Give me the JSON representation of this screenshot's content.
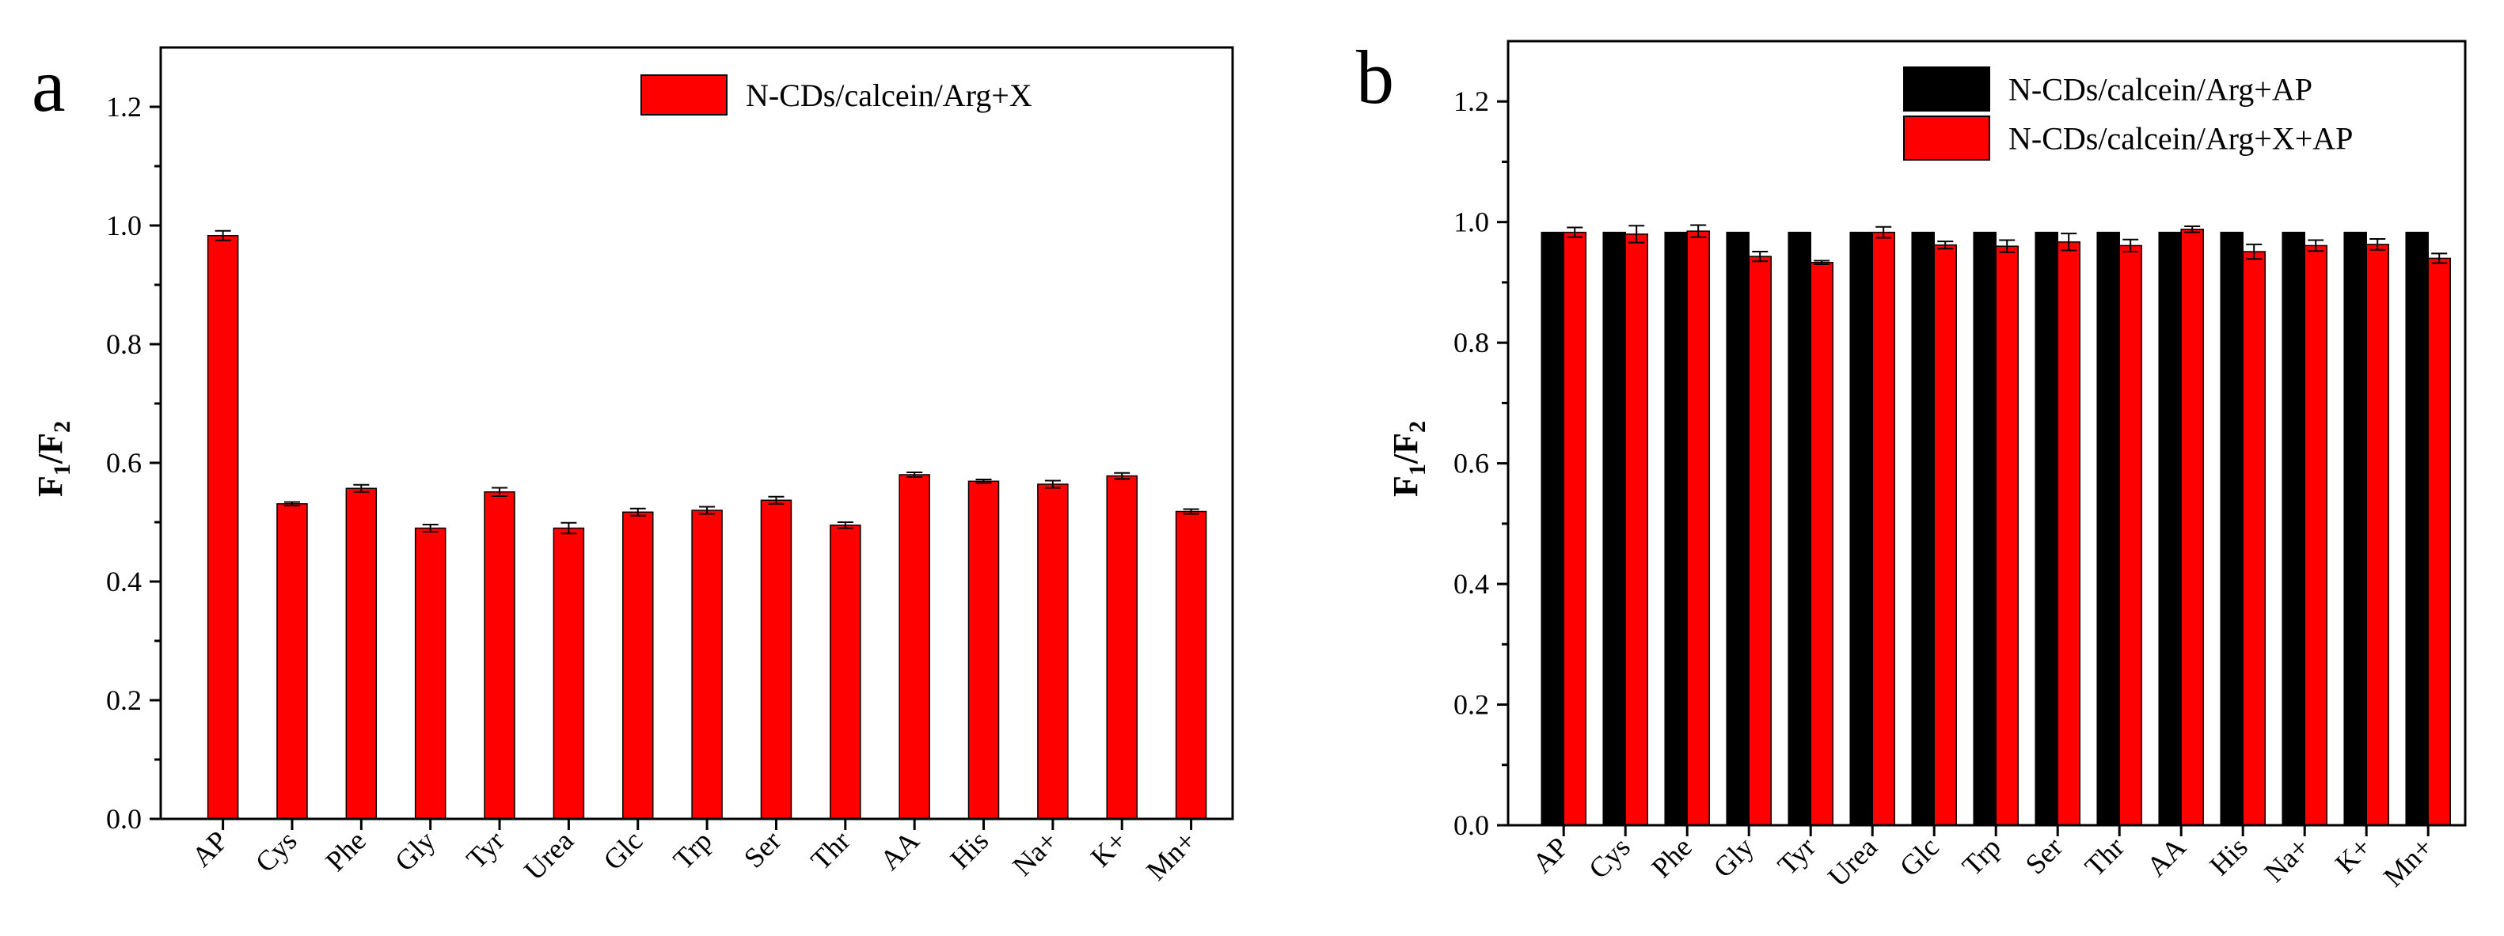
{
  "chart_data": [
    {
      "type": "bar",
      "panel_label": "a",
      "ylabel": {
        "main": "F",
        "sub1": "1",
        "sep": "/F",
        "sub2": "2"
      },
      "xlabel": "",
      "ylim": [
        0,
        1.3
      ],
      "yticks": [
        "0.0",
        "0.2",
        "0.4",
        "0.6",
        "0.8",
        "1.0",
        "1.2"
      ],
      "yticks_values": [
        0,
        0.2,
        0.4,
        0.6,
        0.8,
        1.0,
        1.2
      ],
      "categories": [
        "AP",
        "Cys",
        "Phe",
        "Gly",
        "Tyr",
        "Urea",
        "Glc",
        "Trp",
        "Ser",
        "Thr",
        "AA",
        "His",
        "Na+",
        "K+",
        "Mn+"
      ],
      "series": [
        {
          "name": "N-CDs/calcein/Arg+X",
          "color": "#ff0000",
          "values": [
            0.983,
            0.531,
            0.557,
            0.49,
            0.551,
            0.49,
            0.517,
            0.52,
            0.537,
            0.495,
            0.58,
            0.569,
            0.564,
            0.578,
            0.518
          ],
          "errors": [
            0.008,
            0.003,
            0.006,
            0.006,
            0.007,
            0.009,
            0.006,
            0.006,
            0.006,
            0.005,
            0.004,
            0.003,
            0.006,
            0.005,
            0.004
          ]
        }
      ],
      "legend": "top-right"
    },
    {
      "type": "bar",
      "panel_label": "b",
      "ylabel": {
        "main": "F",
        "sub1": "1",
        "sep": "/F",
        "sub2": "2"
      },
      "xlabel": "",
      "ylim": [
        0,
        1.3
      ],
      "yticks": [
        "0.0",
        "0.2",
        "0.4",
        "0.6",
        "0.8",
        "1.0",
        "1.2"
      ],
      "yticks_values": [
        0,
        0.2,
        0.4,
        0.6,
        0.8,
        1.0,
        1.2
      ],
      "categories": [
        "AP",
        "Cys",
        "Phe",
        "Gly",
        "Tyr",
        "Urea",
        "Glc",
        "Trp",
        "Ser",
        "Thr",
        "AA",
        "His",
        "Na+",
        "K+",
        "Mn+"
      ],
      "series": [
        {
          "name": "N-CDs/calcein/Arg+AP",
          "color": "#000000",
          "values": [
            0.983,
            0.983,
            0.983,
            0.983,
            0.983,
            0.983,
            0.983,
            0.983,
            0.983,
            0.983,
            0.983,
            0.983,
            0.983,
            0.983,
            0.983
          ],
          "errors": [
            0,
            0,
            0,
            0,
            0,
            0,
            0,
            0,
            0,
            0,
            0,
            0,
            0,
            0,
            0
          ]
        },
        {
          "name": "N-CDs/calcein/Arg+X+AP",
          "color": "#ff0000",
          "values": [
            0.983,
            0.98,
            0.985,
            0.943,
            0.933,
            0.983,
            0.962,
            0.96,
            0.967,
            0.961,
            0.988,
            0.951,
            0.961,
            0.963,
            0.94
          ],
          "errors": [
            0.008,
            0.014,
            0.01,
            0.008,
            0.003,
            0.009,
            0.006,
            0.01,
            0.014,
            0.01,
            0.005,
            0.012,
            0.009,
            0.009,
            0.008
          ]
        }
      ],
      "legend": "top-right"
    }
  ]
}
